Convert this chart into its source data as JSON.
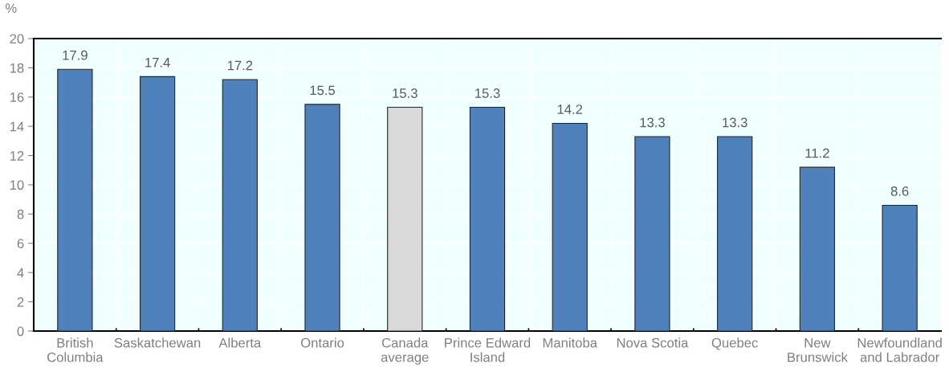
{
  "chart_data": {
    "type": "bar",
    "ylabel": "%",
    "categories": [
      "British\nColumbia",
      "Saskatchewan",
      "Alberta",
      "Ontario",
      "Canada\naverage",
      "Prince Edward\nIsland",
      "Manitoba",
      "Nova Scotia",
      "Quebec",
      "New\nBrunswick",
      "Newfoundland\nand Labrador"
    ],
    "values": [
      17.9,
      17.4,
      17.2,
      15.5,
      15.3,
      15.3,
      14.2,
      13.3,
      13.3,
      11.2,
      8.6
    ],
    "colors": [
      "#4f81bd",
      "#4f81bd",
      "#4f81bd",
      "#4f81bd",
      "#d9d9d9",
      "#4f81bd",
      "#4f81bd",
      "#4f81bd",
      "#4f81bd",
      "#4f81bd",
      "#4f81bd"
    ],
    "ylim": [
      0,
      20
    ],
    "yticks": [
      0,
      2,
      4,
      6,
      8,
      10,
      12,
      14,
      16,
      18,
      20
    ],
    "grid": true,
    "data_labels": true
  }
}
